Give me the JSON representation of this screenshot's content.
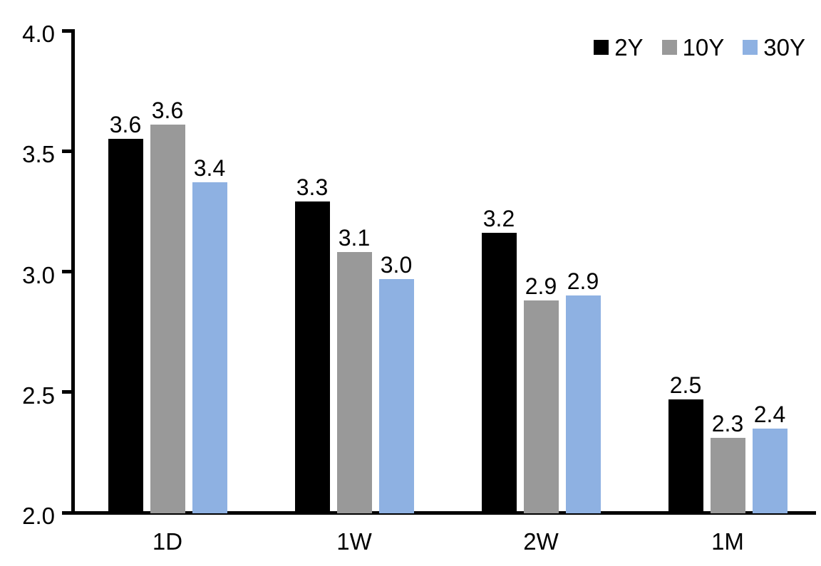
{
  "chart_data": {
    "type": "bar",
    "title": "",
    "xlabel": "",
    "ylabel": "",
    "categories": [
      "1D",
      "1W",
      "2W",
      "1M"
    ],
    "series": [
      {
        "name": "2Y",
        "color": "#000000",
        "values": [
          3.55,
          3.29,
          3.16,
          2.47
        ],
        "labels": [
          "3.6",
          "3.3",
          "3.2",
          "2.5"
        ]
      },
      {
        "name": "10Y",
        "color": "#999999",
        "values": [
          3.61,
          3.08,
          2.88,
          2.31
        ],
        "labels": [
          "3.6",
          "3.1",
          "2.9",
          "2.3"
        ]
      },
      {
        "name": "30Y",
        "color": "#8EB1E2",
        "values": [
          3.37,
          2.97,
          2.9,
          2.35
        ],
        "labels": [
          "3.4",
          "3.0",
          "2.9",
          "2.4"
        ]
      }
    ],
    "ylim": [
      2.0,
      4.0
    ],
    "yticks": [
      "4.0",
      "3.5",
      "3.0",
      "2.5",
      "2.0"
    ],
    "grid": false,
    "legend_position": "top-right",
    "axis_color": "#000000",
    "background_color": "#ffffff"
  }
}
